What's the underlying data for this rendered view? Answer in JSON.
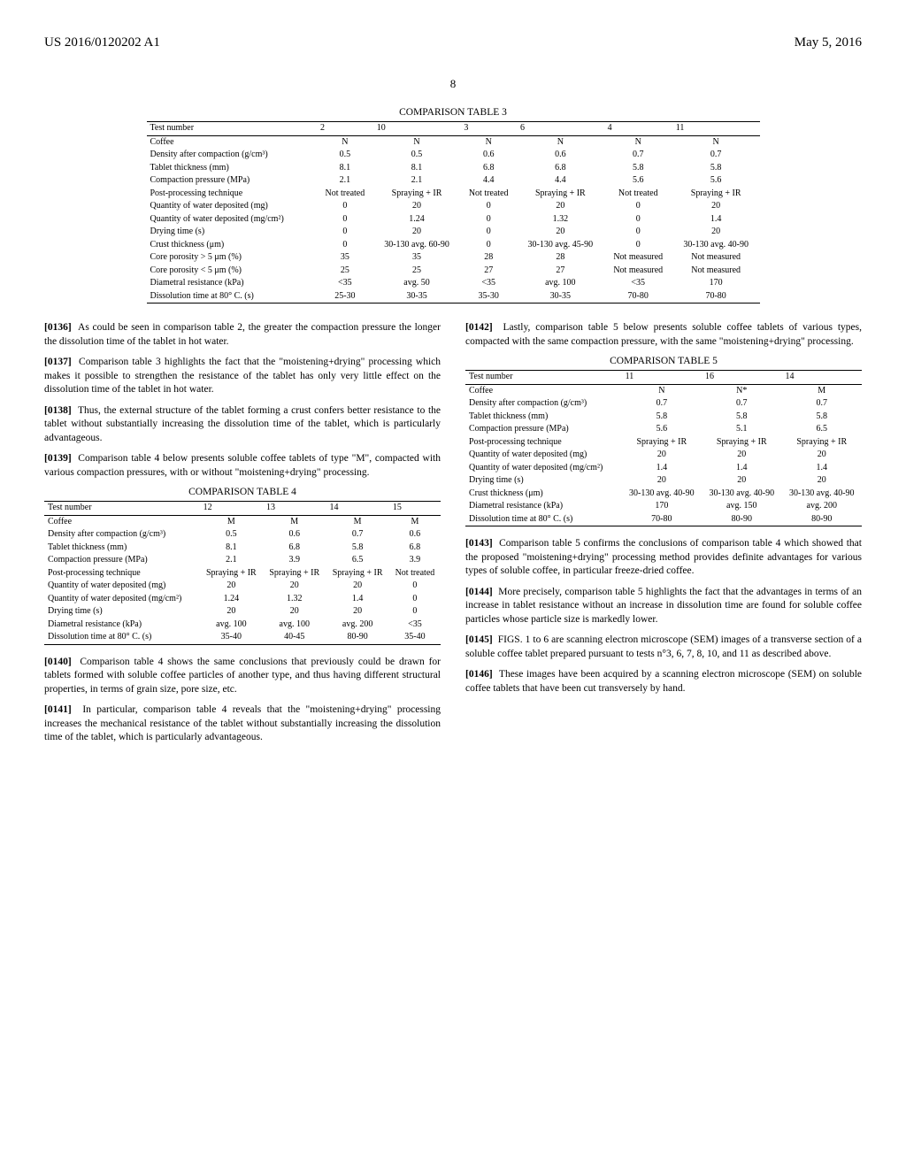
{
  "header": {
    "pub_number": "US 2016/0120202 A1",
    "pub_date": "May 5, 2016",
    "page_number": "8"
  },
  "table3": {
    "title": "COMPARISON TABLE 3",
    "head_row": [
      "Test number",
      "2",
      "10",
      "3",
      "6",
      "4",
      "11"
    ],
    "rows": [
      [
        "Coffee",
        "N",
        "N",
        "N",
        "N",
        "N",
        "N"
      ],
      [
        "Density after compaction (g/cm³)",
        "0.5",
        "0.5",
        "0.6",
        "0.6",
        "0.7",
        "0.7"
      ],
      [
        "Tablet thickness (mm)",
        "8.1",
        "8.1",
        "6.8",
        "6.8",
        "5.8",
        "5.8"
      ],
      [
        "Compaction pressure (MPa)",
        "2.1",
        "2.1",
        "4.4",
        "4.4",
        "5.6",
        "5.6"
      ],
      [
        "Post-processing technique",
        "Not treated",
        "Spraying + IR",
        "Not treated",
        "Spraying + IR",
        "Not treated",
        "Spraying + IR"
      ],
      [
        "Quantity of water deposited (mg)",
        "0",
        "20",
        "0",
        "20",
        "0",
        "20"
      ],
      [
        "Quantity of water deposited (mg/cm²)",
        "0",
        "1.24",
        "0",
        "1.32",
        "0",
        "1.4"
      ],
      [
        "Drying time (s)",
        "0",
        "20",
        "0",
        "20",
        "0",
        "20"
      ],
      [
        "Crust thickness (μm)",
        "0",
        "30-130 avg. 60-90",
        "0",
        "30-130 avg. 45-90",
        "0",
        "30-130 avg. 40-90"
      ],
      [
        "Core porosity > 5 μm (%)",
        "35",
        "35",
        "28",
        "28",
        "Not measured",
        "Not measured"
      ],
      [
        "Core porosity < 5 μm (%)",
        "25",
        "25",
        "27",
        "27",
        "Not measured",
        "Not measured"
      ],
      [
        "Diametral resistance (kPa)",
        "<35",
        "avg. 50",
        "<35",
        "avg. 100",
        "<35",
        "170"
      ],
      [
        "Dissolution time at 80° C. (s)",
        "25-30",
        "30-35",
        "35-30",
        "30-35",
        "70-80",
        "70-80"
      ]
    ]
  },
  "table4": {
    "title": "COMPARISON TABLE 4",
    "head_row": [
      "Test number",
      "12",
      "13",
      "14",
      "15"
    ],
    "rows": [
      [
        "Coffee",
        "M",
        "M",
        "M",
        "M"
      ],
      [
        "Density after compaction (g/cm³)",
        "0.5",
        "0.6",
        "0.7",
        "0.6"
      ],
      [
        "Tablet thickness (mm)",
        "8.1",
        "6.8",
        "5.8",
        "6.8"
      ],
      [
        "Compaction pressure (MPa)",
        "2.1",
        "3.9",
        "6.5",
        "3.9"
      ],
      [
        "Post-processing technique",
        "Spraying + IR",
        "Spraying + IR",
        "Spraying + IR",
        "Not treated"
      ],
      [
        "Quantity of water deposited (mg)",
        "20",
        "20",
        "20",
        "0"
      ],
      [
        "Quantity of water deposited (mg/cm²)",
        "1.24",
        "1.32",
        "1.4",
        "0"
      ],
      [
        "Drying time (s)",
        "20",
        "20",
        "20",
        "0"
      ],
      [
        "Diametral resistance (kPa)",
        "avg. 100",
        "avg. 100",
        "avg. 200",
        "<35"
      ],
      [
        "Dissolution time at 80° C. (s)",
        "35-40",
        "40-45",
        "80-90",
        "35-40"
      ]
    ]
  },
  "table5": {
    "title": "COMPARISON TABLE 5",
    "head_row": [
      "Test number",
      "11",
      "16",
      "14"
    ],
    "rows": [
      [
        "Coffee",
        "N",
        "N*",
        "M"
      ],
      [
        "Density after compaction (g/cm³)",
        "0.7",
        "0.7",
        "0.7"
      ],
      [
        "Tablet thickness (mm)",
        "5.8",
        "5.8",
        "5.8"
      ],
      [
        "Compaction pressure (MPa)",
        "5.6",
        "5.1",
        "6.5"
      ],
      [
        "Post-processing technique",
        "Spraying + IR",
        "Spraying + IR",
        "Spraying + IR"
      ],
      [
        "Quantity of water deposited (mg)",
        "20",
        "20",
        "20"
      ],
      [
        "Quantity of water deposited (mg/cm²)",
        "1.4",
        "1.4",
        "1.4"
      ],
      [
        "Drying time (s)",
        "20",
        "20",
        "20"
      ],
      [
        "Crust thickness (μm)",
        "30-130 avg. 40-90",
        "30-130 avg. 40-90",
        "30-130 avg. 40-90"
      ],
      [
        "Diametral resistance (kPa)",
        "170",
        "avg. 150",
        "avg. 200"
      ],
      [
        "Dissolution time at 80° C. (s)",
        "70-80",
        "80-90",
        "80-90"
      ]
    ]
  },
  "paragraphs": {
    "p0136": "As could be seen in comparison table 2, the greater the compaction pressure the longer the dissolution time of the tablet in hot water.",
    "p0137": "Comparison table 3 highlights the fact that the \"moistening+drying\" processing which makes it possible to strengthen the resistance of the tablet has only very little effect on the dissolution time of the tablet in hot water.",
    "p0138": "Thus, the external structure of the tablet forming a crust confers better resistance to the tablet without substantially increasing the dissolution time of the tablet, which is particularly advantageous.",
    "p0139": "Comparison table 4 below presents soluble coffee tablets of type \"M\", compacted with various compaction pressures, with or without \"moistening+drying\" processing.",
    "p0140": "Comparison table 4 shows the same conclusions that previously could be drawn for tablets formed with soluble coffee particles of another type, and thus having different structural properties, in terms of grain size, pore size, etc.",
    "p0141": "In particular, comparison table 4 reveals that the \"moistening+drying\" processing increases the mechanical resistance of the tablet without substantially increasing the dissolution time of the tablet, which is particularly advantageous.",
    "p0142": "Lastly, comparison table 5 below presents soluble coffee tablets of various types, compacted with the same compaction pressure, with the same \"moistening+drying\" processing.",
    "p0143": "Comparison table 5 confirms the conclusions of comparison table 4 which showed that the proposed \"moistening+drying\" processing method provides definite advantages for various types of soluble coffee, in particular freeze-dried coffee.",
    "p0144": "More precisely, comparison table 5 highlights the fact that the advantages in terms of an increase in tablet resistance without an increase in dissolution time are found for soluble coffee particles whose particle size is markedly lower.",
    "p0145": "FIGS. 1 to 6 are scanning electron microscope (SEM) images of a transverse section of a soluble coffee tablet prepared pursuant to tests n°3, 6, 7, 8, 10, and 11 as described above.",
    "p0146": "These images have been acquired by a scanning electron microscope (SEM) on soluble coffee tablets that have been cut transversely by hand."
  },
  "labels": {
    "n0136": "[0136]",
    "n0137": "[0137]",
    "n0138": "[0138]",
    "n0139": "[0139]",
    "n0140": "[0140]",
    "n0141": "[0141]",
    "n0142": "[0142]",
    "n0143": "[0143]",
    "n0144": "[0144]",
    "n0145": "[0145]",
    "n0146": "[0146]"
  }
}
